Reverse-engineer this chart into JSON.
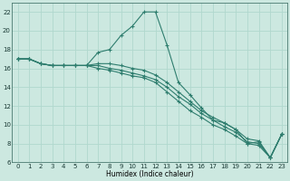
{
  "xlabel": "Humidex (Indice chaleur)",
  "background_color": "#cce8e0",
  "grid_color": "#b0d8ce",
  "line_color": "#2e7d6e",
  "xlim": [
    -0.5,
    23.5
  ],
  "ylim": [
    6,
    23
  ],
  "yticks": [
    6,
    8,
    10,
    12,
    14,
    16,
    18,
    20,
    22
  ],
  "xticks": [
    0,
    1,
    2,
    3,
    4,
    5,
    6,
    7,
    8,
    9,
    10,
    11,
    12,
    13,
    14,
    15,
    16,
    17,
    18,
    19,
    20,
    21,
    22,
    23
  ],
  "series": [
    [
      17.0,
      17.0,
      16.5,
      16.3,
      16.3,
      16.3,
      16.3,
      17.7,
      18.0,
      19.5,
      20.5,
      22.0,
      22.0,
      18.5,
      14.5,
      13.2,
      11.8,
      10.5,
      10.2,
      9.5,
      8.0,
      8.2,
      6.5,
      9.0
    ],
    [
      17.0,
      17.0,
      16.5,
      16.3,
      16.3,
      16.3,
      16.3,
      16.5,
      16.5,
      16.3,
      16.0,
      15.8,
      15.3,
      14.5,
      13.5,
      12.5,
      11.5,
      10.8,
      10.2,
      9.5,
      8.5,
      8.3,
      6.5,
      9.0
    ],
    [
      17.0,
      17.0,
      16.5,
      16.3,
      16.3,
      16.3,
      16.3,
      16.3,
      16.0,
      15.8,
      15.5,
      15.2,
      14.8,
      14.0,
      13.0,
      12.2,
      11.2,
      10.5,
      9.8,
      9.2,
      8.2,
      8.0,
      6.5,
      9.0
    ],
    [
      17.0,
      17.0,
      16.5,
      16.3,
      16.3,
      16.3,
      16.3,
      16.0,
      15.8,
      15.5,
      15.2,
      15.0,
      14.5,
      13.5,
      12.5,
      11.5,
      10.8,
      10.0,
      9.5,
      8.8,
      8.0,
      7.8,
      6.5,
      9.0
    ]
  ]
}
